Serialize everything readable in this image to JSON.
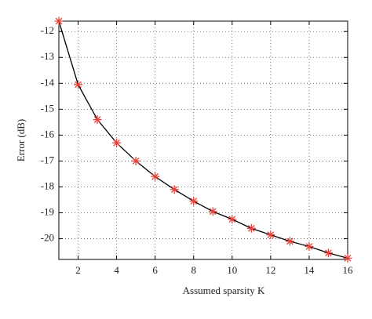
{
  "chart_data": {
    "type": "line",
    "xlabel": "Assumed sparsity K",
    "ylabel": "Error (dB)",
    "x": [
      1,
      2,
      3,
      4,
      5,
      6,
      7,
      8,
      9,
      10,
      11,
      12,
      13,
      14,
      15,
      16
    ],
    "series": [
      {
        "color": "#000000",
        "marker_color": "#e8413a",
        "values": [
          -11.6,
          -14.05,
          -15.4,
          -16.3,
          -17.0,
          -17.6,
          -18.1,
          -18.55,
          -18.95,
          -19.25,
          -19.6,
          -19.85,
          -20.1,
          -20.3,
          -20.55,
          -20.75
        ]
      }
    ],
    "xlim": [
      1,
      16
    ],
    "xticks": [
      2,
      4,
      6,
      8,
      10,
      12,
      14,
      16
    ],
    "ylim": [
      -20.8,
      -11.6
    ],
    "yticks": [
      -12,
      -13,
      -14,
      -15,
      -16,
      -17,
      -18,
      -19,
      -20
    ],
    "grid": true
  }
}
